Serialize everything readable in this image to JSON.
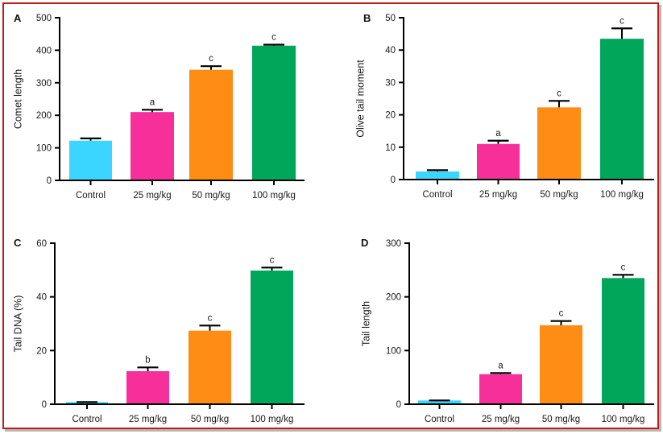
{
  "chart_data": [
    {
      "type": "bar",
      "panel": "A",
      "title": "",
      "xlabel": "",
      "ylabel": "Comet length",
      "ylim": [
        0,
        500
      ],
      "yticks": [
        0,
        100,
        200,
        300,
        400,
        500
      ],
      "categories": [
        "Control",
        "25 mg/kg",
        "50 mg/kg",
        "100 mg/kg"
      ],
      "values": [
        122,
        210,
        340,
        414
      ],
      "error_upper": [
        129,
        217,
        351,
        417
      ],
      "significance": [
        "",
        "a",
        "c",
        "c"
      ],
      "colors": [
        "#3ad6ff",
        "#f72f9a",
        "#ff8c14",
        "#00a65a"
      ],
      "grid": false
    },
    {
      "type": "bar",
      "panel": "B",
      "title": "",
      "xlabel": "",
      "ylabel": "Olive tail moment",
      "ylim": [
        0,
        50
      ],
      "yticks": [
        0,
        10,
        20,
        30,
        40,
        50
      ],
      "categories": [
        "Control",
        "25 mg/kg",
        "50 mg/kg",
        "100 mg/kg"
      ],
      "values": [
        2.5,
        11,
        22.3,
        43.5
      ],
      "error_upper": [
        2.9,
        12,
        24.3,
        46.7
      ],
      "significance": [
        "",
        "a",
        "c",
        "c"
      ],
      "colors": [
        "#3ad6ff",
        "#f72f9a",
        "#ff8c14",
        "#00a65a"
      ],
      "grid": false
    },
    {
      "type": "bar",
      "panel": "C",
      "title": "",
      "xlabel": "",
      "ylabel": "Tail DNA (%)",
      "ylim": [
        0,
        60
      ],
      "yticks": [
        0,
        20,
        40,
        60
      ],
      "categories": [
        "Control",
        "25 mg/kg",
        "50 mg/kg",
        "100 mg/kg"
      ],
      "values": [
        0.8,
        12.3,
        27.4,
        49.8
      ],
      "error_upper": [
        0.8,
        13.7,
        29.3,
        50.9
      ],
      "significance": [
        "",
        "b",
        "c",
        "c"
      ],
      "colors": [
        "#3ad6ff",
        "#f72f9a",
        "#ff8c14",
        "#00a65a"
      ],
      "grid": false
    },
    {
      "type": "bar",
      "panel": "D",
      "title": "",
      "xlabel": "",
      "ylabel": "Tail length",
      "ylim": [
        0,
        300
      ],
      "yticks": [
        0,
        100,
        200,
        300
      ],
      "categories": [
        "Control",
        "25 mg/kg",
        "50 mg/kg",
        "100 mg/kg"
      ],
      "values": [
        7,
        56,
        147,
        235
      ],
      "error_upper": [
        7,
        58,
        155,
        241
      ],
      "significance": [
        "",
        "a",
        "c",
        "c"
      ],
      "colors": [
        "#3ad6ff",
        "#f72f9a",
        "#ff8c14",
        "#00a65a"
      ],
      "grid": false
    }
  ],
  "frame_color": "#c41a1a"
}
